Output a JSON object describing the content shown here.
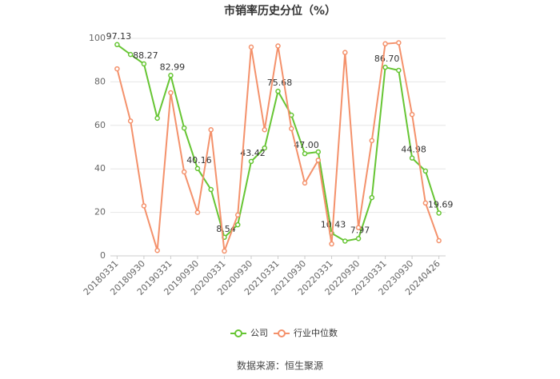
{
  "chart_data": {
    "type": "line",
    "title": "市销率历史分位（%）",
    "categories": [
      "20180331",
      null,
      "20180930",
      null,
      "20190331",
      null,
      "20190930",
      null,
      "20200331",
      null,
      "20200930",
      null,
      "20210331",
      null,
      "20210930",
      null,
      "20220331",
      null,
      "20220930",
      null,
      "20230331",
      null,
      "20230930",
      null,
      "20240426"
    ],
    "series": [
      {
        "name": "公司",
        "color": "#66c533",
        "values": [
          97.13,
          92.6,
          88.27,
          63.3,
          82.99,
          58.8,
          40.16,
          30.5,
          8.54,
          14.3,
          43.42,
          49.6,
          75.68,
          64.7,
          47.0,
          47.8,
          10.43,
          6.8,
          7.97,
          26.8,
          86.7,
          85.3,
          44.98,
          39.0,
          19.69
        ],
        "value_labels": [
          "97.13",
          null,
          "88.27",
          null,
          "82.99",
          null,
          "40.16",
          null,
          "8.54",
          null,
          "43.42",
          null,
          "75.68",
          null,
          "47.00",
          null,
          "10.43",
          null,
          "7.97",
          null,
          "86.70",
          null,
          "44.98",
          null,
          "19.69"
        ]
      },
      {
        "name": "行业中位数",
        "color": "#f4916b",
        "values": [
          86,
          62,
          23,
          2.5,
          75,
          38.6,
          20,
          58,
          2.2,
          18.8,
          96,
          58,
          96.5,
          58.5,
          33.5,
          44,
          5.5,
          93.5,
          13,
          53,
          97.5,
          98,
          65,
          24.3,
          7
        ]
      }
    ],
    "ylim": [
      0,
      100
    ],
    "yticks": [
      0,
      20,
      40,
      60,
      80,
      100
    ],
    "grid": true,
    "source": "数据来源：恒生聚源"
  }
}
